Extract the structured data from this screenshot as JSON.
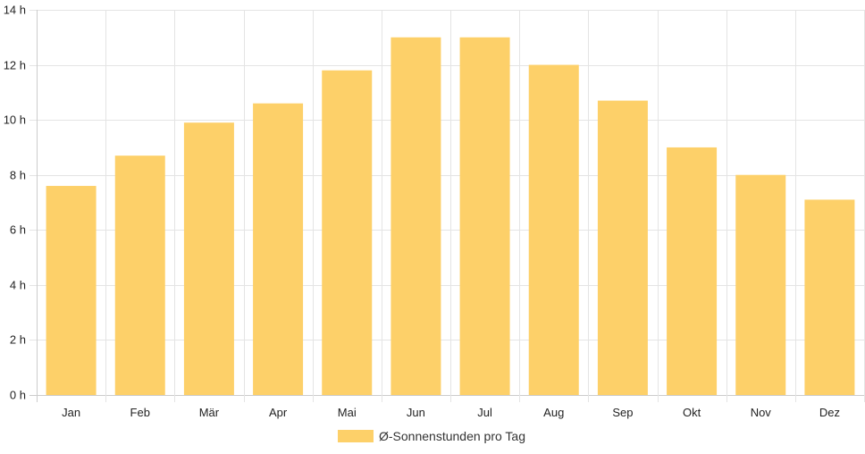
{
  "chart_data": {
    "type": "bar",
    "categories": [
      "Jan",
      "Feb",
      "Mär",
      "Apr",
      "Mai",
      "Jun",
      "Jul",
      "Aug",
      "Sep",
      "Okt",
      "Nov",
      "Dez"
    ],
    "series": [
      {
        "name": "Ø-Sonnenstunden pro Tag",
        "values": [
          7.6,
          8.7,
          9.9,
          10.6,
          11.8,
          13.0,
          13.0,
          12.0,
          10.7,
          9.0,
          8.0,
          7.1
        ]
      }
    ],
    "ylim": [
      0,
      14
    ],
    "yticks": [
      0,
      2,
      4,
      6,
      8,
      10,
      12,
      14
    ],
    "ytick_labels": [
      "0 h",
      "2 h",
      "4 h",
      "6 h",
      "8 h",
      "10 h",
      "12 h",
      "14 h"
    ],
    "grid": true,
    "legend": "bottom",
    "colors": {
      "bar": "#fdd069",
      "grid": "#e4e4e4",
      "axis": "#cccccc"
    }
  }
}
